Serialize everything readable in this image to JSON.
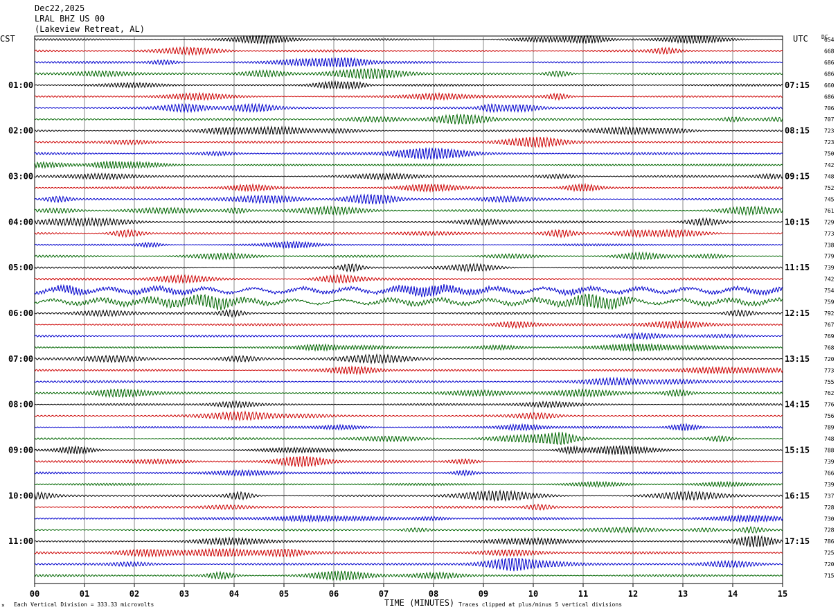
{
  "header": {
    "date": "Dec22,2025",
    "station": "LRAL BHZ US 00",
    "location": "(Lakeview Retreat, AL)",
    "left_tz": "CST",
    "right_tz": "UTC",
    "dc_label": "DC"
  },
  "footer": {
    "scale": "Each Vertical Division =  333.33 microvolts",
    "xlabel": "TIME (MINUTES)",
    "clip": "Traces clipped at plus/minus 5 vertical divisions"
  },
  "colors": {
    "black": "#000000",
    "red": "#cc0000",
    "blue": "#0000cc",
    "green": "#006600",
    "grid": "#888888"
  },
  "chart_data": {
    "type": "line",
    "xlabel": "TIME (MINUTES)",
    "xlim": [
      0,
      15
    ],
    "x_ticks": [
      "00",
      "01",
      "02",
      "03",
      "04",
      "05",
      "06",
      "07",
      "08",
      "09",
      "10",
      "11",
      "12",
      "13",
      "14",
      "15"
    ],
    "trace_color_cycle": [
      "black",
      "red",
      "blue",
      "green"
    ],
    "rows": 48,
    "minutes_per_row": 15,
    "left_hour_labels": [
      "01:00",
      "02:00",
      "03:00",
      "04:00",
      "05:00",
      "06:00",
      "07:00",
      "08:00",
      "09:00",
      "10:00",
      "11:00"
    ],
    "right_hour_labels": [
      "07:15",
      "08:15",
      "09:15",
      "10:15",
      "11:15",
      "12:15",
      "13:15",
      "14:15",
      "15:15",
      "16:15",
      "17:15"
    ],
    "dc_offsets": [
      "654",
      "668",
      "686",
      "686",
      "660",
      "686",
      "706",
      "707",
      "723",
      "723",
      "750",
      "742",
      "748",
      "752",
      "745",
      "761",
      "729",
      "773",
      "738",
      "779",
      "739",
      "742",
      "754",
      "759",
      "792",
      "767",
      "769",
      "768",
      "720",
      "773",
      "755",
      "762",
      "776",
      "756",
      "789",
      "748",
      "788",
      "739",
      "766",
      "739",
      "737",
      "728",
      "730",
      "728",
      "786",
      "725",
      "720",
      "715"
    ],
    "noisy_rows": [
      22,
      23
    ]
  }
}
